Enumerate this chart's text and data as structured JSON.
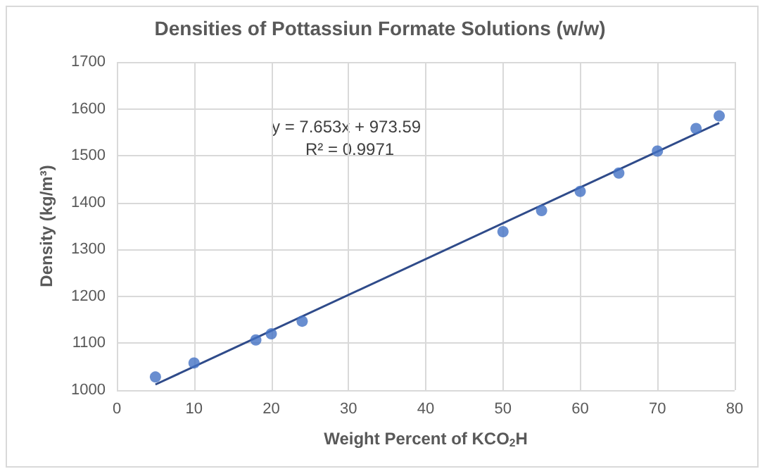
{
  "chart_data": {
    "type": "scatter",
    "title": "Densities of Pottassiun Formate Solutions (w/w)",
    "xlabel": "Weight Percent of KCO$_{2}$H",
    "ylabel": "Density (kg/m³)",
    "series": [
      {
        "color": "#4472c4",
        "marker": "circle",
        "x": [
          5,
          10,
          18,
          20,
          24,
          50,
          55,
          60,
          65,
          70,
          75,
          78
        ],
        "values": [
          1028,
          1058,
          1107,
          1120,
          1147,
          1338,
          1383,
          1424,
          1463,
          1510,
          1558,
          1585
        ]
      },
      {
        "type": "line",
        "color": "#2f4b8a",
        "x": [
          5,
          78
        ],
        "values": [
          1012,
          1570
        ]
      }
    ],
    "annotations": [
      "y = 7.653x + 973.59",
      "R² = 0.9971"
    ],
    "xlim": [
      0,
      80
    ],
    "xticks": [
      0,
      10,
      20,
      30,
      40,
      50,
      60,
      70,
      80
    ],
    "ylim": [
      1000,
      1700
    ],
    "yticks": [
      1000,
      1100,
      1200,
      1300,
      1400,
      1500,
      1600,
      1700
    ],
    "grid": true
  }
}
